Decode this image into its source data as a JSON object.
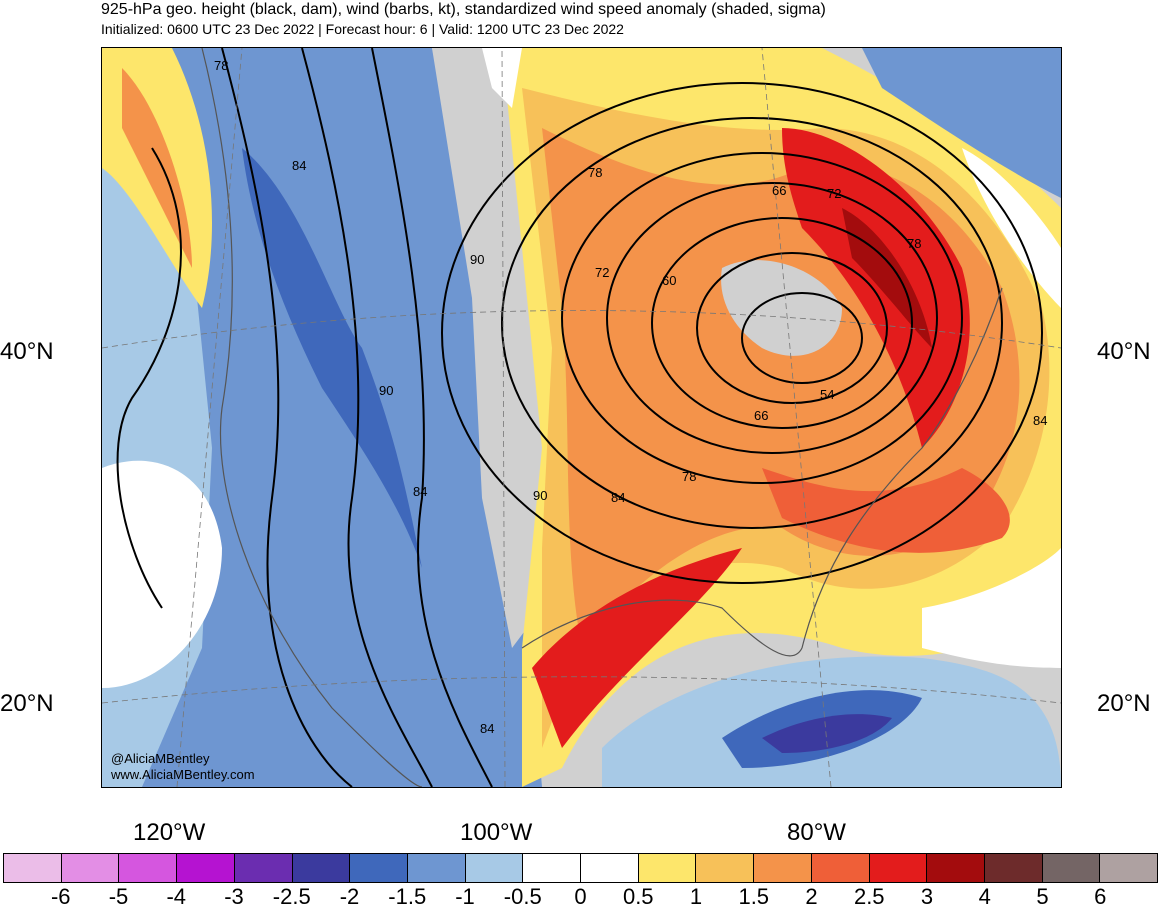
{
  "header": {
    "title": "925-hPa geo. height (black, dam), wind (barbs, kt), standardized wind speed anomaly (shaded, sigma)",
    "subtitle": "Initialized: 0600 UTC 23 Dec 2022 | Forecast hour: 6 | Valid: 1200 UTC 23 Dec 2022"
  },
  "axes": {
    "lat_labels": [
      "40°N",
      "20°N"
    ],
    "lon_labels": [
      "120°W",
      "100°W",
      "80°W"
    ]
  },
  "contour_labels": [
    "78",
    "84",
    "90",
    "90",
    "84",
    "84",
    "90",
    "84",
    "78",
    "72",
    "66",
    "60",
    "54",
    "66",
    "72",
    "78",
    "84",
    "78"
  ],
  "credit": {
    "handle": "@AliciaMBentley",
    "site": "www.AliciaMBentley.com"
  },
  "colorbar": {
    "colors": [
      "#ebbde8",
      "#e38ee5",
      "#d556df",
      "#b513d1",
      "#6b2db0",
      "#3b3a9e",
      "#3f68bb",
      "#6e96d1",
      "#a7c9e6",
      "#ffffff",
      "#ffffff",
      "#fde66b",
      "#f7c159",
      "#f4934a",
      "#ef5f38",
      "#e31c1c",
      "#a30c0d",
      "#6d2b2b",
      "#746565",
      "#aea1a1"
    ],
    "labels": [
      "-6",
      "-5",
      "-4",
      "-3",
      "-2.5",
      "-2",
      "-1.5",
      "-1",
      "-0.5",
      "0",
      "0.5",
      "1",
      "1.5",
      "2",
      "2.5",
      "3",
      "4",
      "5",
      "6"
    ]
  }
}
